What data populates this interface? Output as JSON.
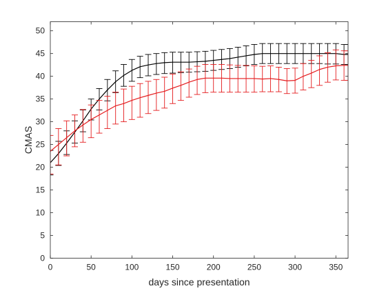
{
  "chart_data": {
    "type": "line",
    "xlabel": "days since presentation",
    "ylabel": "CMAS",
    "xlim": [
      0,
      365
    ],
    "ylim": [
      0,
      52
    ],
    "xticks": [
      0,
      50,
      100,
      150,
      200,
      250,
      300,
      350
    ],
    "yticks": [
      0,
      5,
      10,
      15,
      20,
      25,
      30,
      35,
      40,
      45,
      50
    ],
    "grid": false,
    "legend": "none",
    "series": [
      {
        "color": "#000000",
        "x": [
          0,
          10,
          20,
          30,
          40,
          50,
          60,
          70,
          80,
          90,
          100,
          110,
          120,
          130,
          140,
          150,
          160,
          170,
          180,
          190,
          200,
          210,
          220,
          230,
          240,
          250,
          260,
          270,
          280,
          290,
          300,
          310,
          320,
          330,
          340,
          350,
          360,
          365
        ],
        "y": [
          21.0,
          23.0,
          25.3,
          27.7,
          30.2,
          32.8,
          35.0,
          37.0,
          38.8,
          40.2,
          41.3,
          42.1,
          42.5,
          42.8,
          43.0,
          43.1,
          43.1,
          43.1,
          43.2,
          43.3,
          43.5,
          43.7,
          43.9,
          44.2,
          44.5,
          44.8,
          45.0,
          45.0,
          45.0,
          45.0,
          45.0,
          45.0,
          45.0,
          45.0,
          45.0,
          45.0,
          44.8,
          44.8
        ],
        "lower": [
          18.3,
          20.4,
          22.8,
          25.3,
          27.8,
          30.4,
          32.6,
          34.6,
          36.4,
          37.8,
          38.9,
          39.7,
          40.1,
          40.4,
          40.6,
          40.7,
          40.8,
          40.9,
          41.0,
          41.1,
          41.3,
          41.5,
          41.7,
          42.0,
          42.3,
          42.6,
          42.8,
          42.8,
          42.8,
          42.8,
          42.8,
          42.8,
          42.8,
          42.8,
          42.7,
          42.7,
          42.6,
          42.6
        ],
        "upper": [
          23.7,
          25.7,
          28.0,
          30.2,
          32.6,
          35.0,
          37.3,
          39.3,
          41.2,
          42.6,
          43.7,
          44.4,
          44.8,
          45.0,
          45.2,
          45.3,
          45.3,
          45.3,
          45.4,
          45.5,
          45.7,
          45.9,
          46.1,
          46.4,
          46.7,
          47.0,
          47.2,
          47.2,
          47.2,
          47.2,
          47.2,
          47.2,
          47.2,
          47.2,
          47.2,
          47.2,
          47.0,
          47.0
        ]
      },
      {
        "color": "#e41a1c",
        "x": [
          0,
          10,
          20,
          30,
          40,
          50,
          60,
          70,
          80,
          90,
          100,
          110,
          120,
          130,
          140,
          150,
          160,
          170,
          180,
          190,
          200,
          210,
          220,
          230,
          240,
          250,
          260,
          270,
          280,
          290,
          300,
          310,
          320,
          330,
          340,
          350,
          360,
          365
        ],
        "y": [
          23.5,
          25.0,
          26.5,
          28.0,
          29.3,
          30.5,
          31.5,
          32.5,
          33.5,
          34.0,
          34.7,
          35.3,
          35.8,
          36.3,
          36.7,
          37.4,
          38.0,
          38.7,
          39.3,
          39.6,
          39.6,
          39.6,
          39.5,
          39.5,
          39.5,
          39.5,
          39.4,
          39.5,
          39.3,
          39.0,
          39.1,
          40.0,
          40.7,
          41.5,
          42.0,
          42.3,
          42.4,
          42.4
        ],
        "lower": [
          18.5,
          20.5,
          22.5,
          24.5,
          25.5,
          26.5,
          27.5,
          28.5,
          29.5,
          30.0,
          30.5,
          31.0,
          31.8,
          32.5,
          33.0,
          34.0,
          34.7,
          35.4,
          36.0,
          36.4,
          36.5,
          36.5,
          36.5,
          36.5,
          36.5,
          36.5,
          36.6,
          36.6,
          36.6,
          36.2,
          36.3,
          37.0,
          37.5,
          38.0,
          38.7,
          39.2,
          39.1,
          39.1
        ],
        "upper": [
          27.0,
          28.5,
          30.2,
          31.5,
          32.7,
          33.7,
          34.7,
          35.6,
          36.5,
          37.2,
          37.8,
          38.4,
          38.9,
          39.3,
          39.8,
          40.5,
          41.0,
          41.6,
          42.2,
          42.6,
          42.6,
          42.6,
          42.5,
          42.4,
          42.4,
          42.3,
          42.2,
          42.3,
          42.0,
          41.7,
          41.8,
          42.8,
          43.5,
          44.5,
          45.2,
          45.8,
          45.6,
          45.6
        ]
      }
    ]
  }
}
